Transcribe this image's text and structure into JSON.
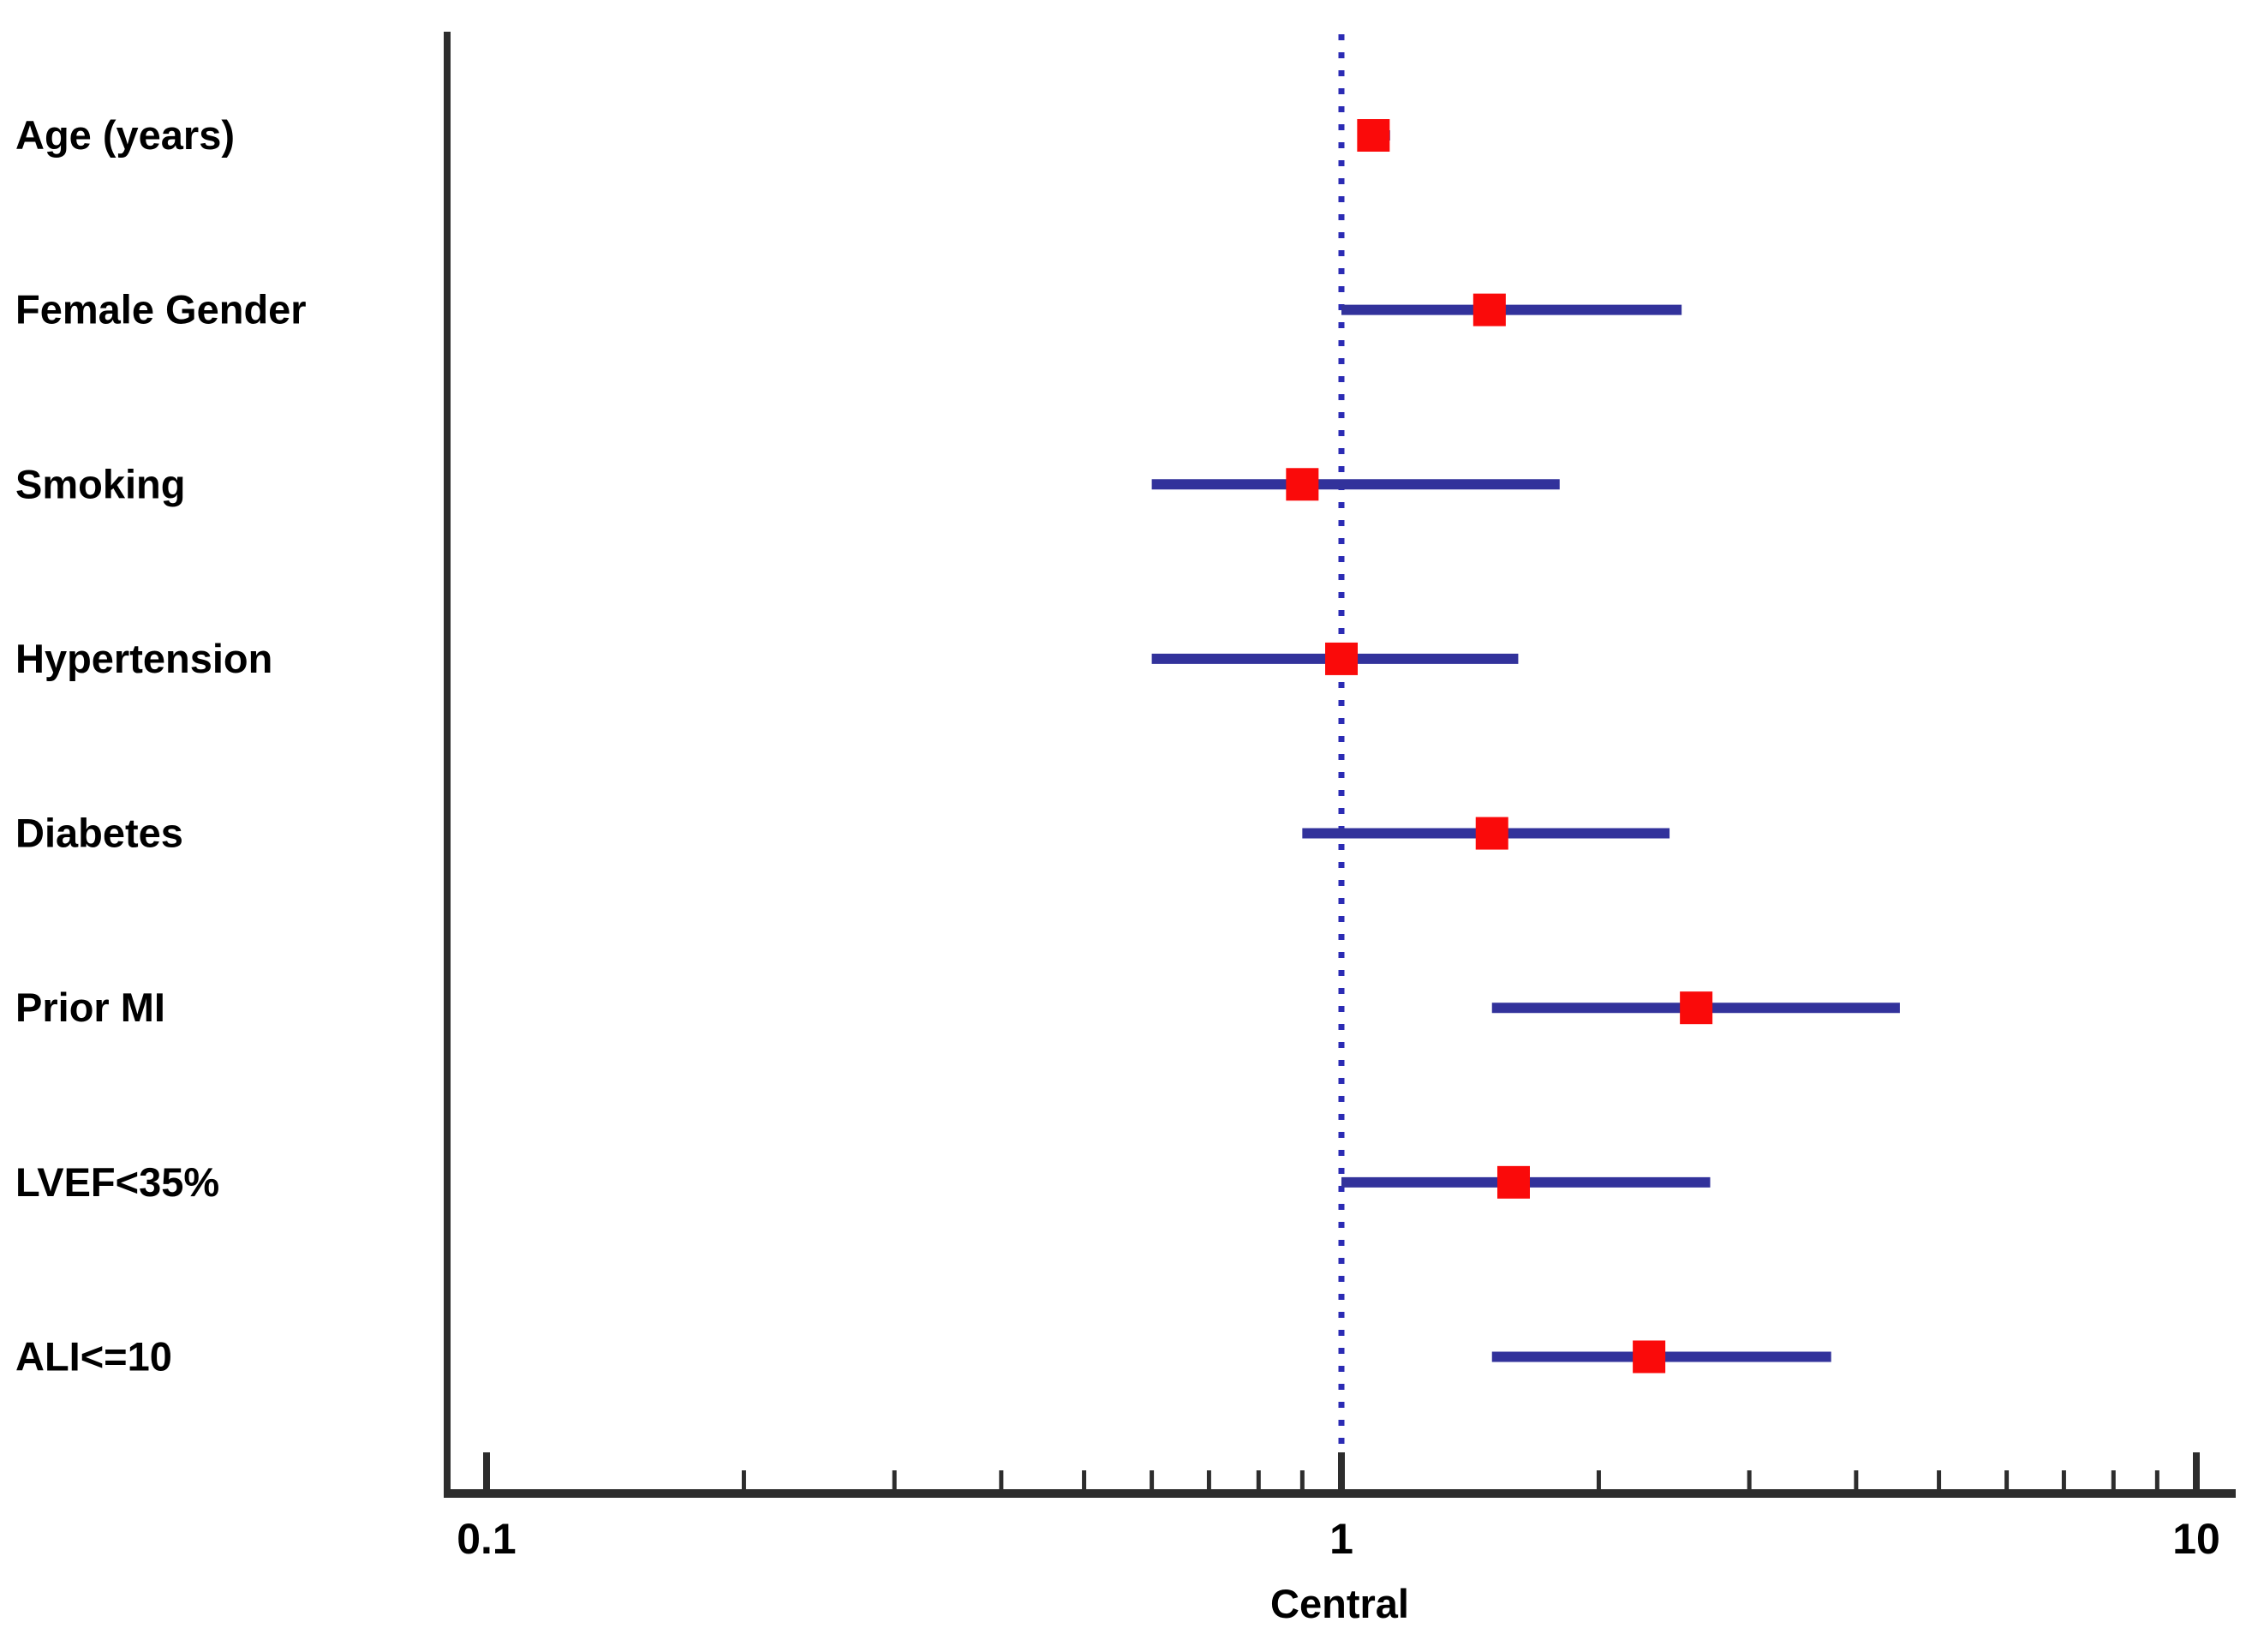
{
  "chart_data": {
    "type": "scatter",
    "subtype": "forest-plot",
    "title": "",
    "xlabel": "Central",
    "ylabel": "",
    "x_scale": "log10",
    "xlim": [
      0.1,
      10
    ],
    "x_major_ticks": [
      0.1,
      1,
      10
    ],
    "x_major_tick_labels": [
      "0.1",
      "1",
      "10"
    ],
    "x_minor_ticks": [
      0.2,
      0.3,
      0.4,
      0.5,
      0.6,
      0.7,
      0.8,
      0.9,
      2,
      3,
      4,
      5,
      6,
      7,
      8,
      9
    ],
    "reference_line_x": 1,
    "grid": "off",
    "legend": "none",
    "rows": [
      {
        "label": "Age (years)",
        "estimate": 1.09,
        "ci_low": 1.05,
        "ci_high": 1.14
      },
      {
        "label": "Female Gender",
        "estimate": 1.49,
        "ci_low": 1.0,
        "ci_high": 2.5
      },
      {
        "label": "Smoking",
        "estimate": 0.9,
        "ci_low": 0.6,
        "ci_high": 1.8
      },
      {
        "label": "Hypertension",
        "estimate": 1.0,
        "ci_low": 0.6,
        "ci_high": 1.61
      },
      {
        "label": "Diabetes",
        "estimate": 1.5,
        "ci_low": 0.9,
        "ci_high": 2.42
      },
      {
        "label": "Prior MI",
        "estimate": 2.6,
        "ci_low": 1.5,
        "ci_high": 4.5
      },
      {
        "label": "LVEF<35%",
        "estimate": 1.59,
        "ci_low": 1.0,
        "ci_high": 2.7
      },
      {
        "label": "ALI<=10",
        "estimate": 2.29,
        "ci_low": 1.5,
        "ci_high": 3.74
      }
    ],
    "colors": {
      "marker": "#FA0A0A",
      "ci_line": "#32329B",
      "reference_line": "#2B2BB4",
      "axis": "#2D2D2D",
      "text": "#000000"
    }
  }
}
